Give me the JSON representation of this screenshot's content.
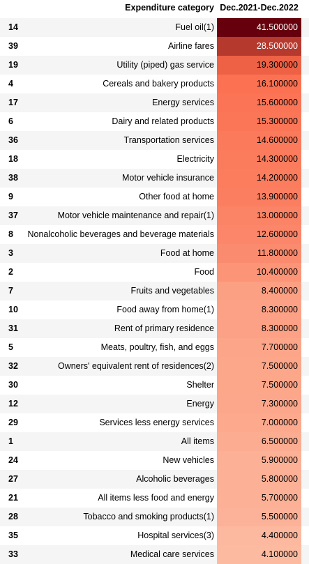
{
  "chart_data": {
    "type": "table",
    "columns": [
      "",
      "Expenditure category",
      "Dec.2021-Dec.2022"
    ],
    "rows": [
      {
        "index": "14",
        "category": "Fuel oil(1)",
        "value": "41.500000",
        "num": 41.5
      },
      {
        "index": "39",
        "category": "Airline fares",
        "value": "28.500000",
        "num": 28.5
      },
      {
        "index": "19",
        "category": "Utility (piped) gas service",
        "value": "19.300000",
        "num": 19.3
      },
      {
        "index": "4",
        "category": "Cereals and bakery products",
        "value": "16.100000",
        "num": 16.1
      },
      {
        "index": "17",
        "category": "Energy services",
        "value": "15.600000",
        "num": 15.6
      },
      {
        "index": "6",
        "category": "Dairy and related products",
        "value": "15.300000",
        "num": 15.3
      },
      {
        "index": "36",
        "category": "Transportation services",
        "value": "14.600000",
        "num": 14.6
      },
      {
        "index": "18",
        "category": "Electricity",
        "value": "14.300000",
        "num": 14.3
      },
      {
        "index": "38",
        "category": "Motor vehicle insurance",
        "value": "14.200000",
        "num": 14.2
      },
      {
        "index": "9",
        "category": "Other food at home",
        "value": "13.900000",
        "num": 13.9
      },
      {
        "index": "37",
        "category": "Motor vehicle maintenance and repair(1)",
        "value": "13.000000",
        "num": 13.0
      },
      {
        "index": "8",
        "category": "Nonalcoholic beverages and beverage materials",
        "value": "12.600000",
        "num": 12.6
      },
      {
        "index": "3",
        "category": "Food at home",
        "value": "11.800000",
        "num": 11.8
      },
      {
        "index": "2",
        "category": "Food",
        "value": "10.400000",
        "num": 10.4
      },
      {
        "index": "7",
        "category": "Fruits and vegetables",
        "value": "8.400000",
        "num": 8.4
      },
      {
        "index": "10",
        "category": "Food away from home(1)",
        "value": "8.300000",
        "num": 8.3
      },
      {
        "index": "31",
        "category": "Rent of primary residence",
        "value": "8.300000",
        "num": 8.3
      },
      {
        "index": "5",
        "category": "Meats, poultry, fish, and eggs",
        "value": "7.700000",
        "num": 7.7
      },
      {
        "index": "32",
        "category": "Owners' equivalent rent of residences(2)",
        "value": "7.500000",
        "num": 7.5
      },
      {
        "index": "30",
        "category": "Shelter",
        "value": "7.500000",
        "num": 7.5
      },
      {
        "index": "12",
        "category": "Energy",
        "value": "7.300000",
        "num": 7.3
      },
      {
        "index": "29",
        "category": "Services less energy services",
        "value": "7.000000",
        "num": 7.0
      },
      {
        "index": "1",
        "category": "All items",
        "value": "6.500000",
        "num": 6.5
      },
      {
        "index": "24",
        "category": "New vehicles",
        "value": "5.900000",
        "num": 5.9
      },
      {
        "index": "27",
        "category": "Alcoholic beverages",
        "value": "5.800000",
        "num": 5.8
      },
      {
        "index": "21",
        "category": "All items less food and energy",
        "value": "5.700000",
        "num": 5.7
      },
      {
        "index": "28",
        "category": "Tobacco and smoking products(1)",
        "value": "5.500000",
        "num": 5.5
      },
      {
        "index": "35",
        "category": "Hospital services(3)",
        "value": "4.400000",
        "num": 4.4
      },
      {
        "index": "33",
        "category": "Medical care services",
        "value": "4.100000",
        "num": 4.1
      }
    ],
    "color_scale": {
      "min": 4.1,
      "max": 41.5,
      "low_color": "#fcbba1",
      "mid_color": "#fb6a4a",
      "high_color": "#67000d"
    }
  }
}
